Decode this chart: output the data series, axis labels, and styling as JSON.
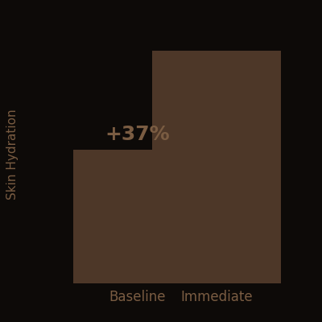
{
  "categories": [
    "Baseline",
    "Immediate"
  ],
  "values": [
    50,
    87
  ],
  "bar_color": "#4d3728",
  "annotation_text": "+37%",
  "ylabel": "Skin Hydration",
  "background_color": "#0d0a08",
  "text_color": "#7a5c42",
  "bar_width": 0.55,
  "ylim": [
    0,
    100
  ],
  "annotation_fontsize": 18,
  "label_fontsize": 12,
  "ylabel_fontsize": 11,
  "bar_positions": [
    0.38,
    0.72
  ]
}
